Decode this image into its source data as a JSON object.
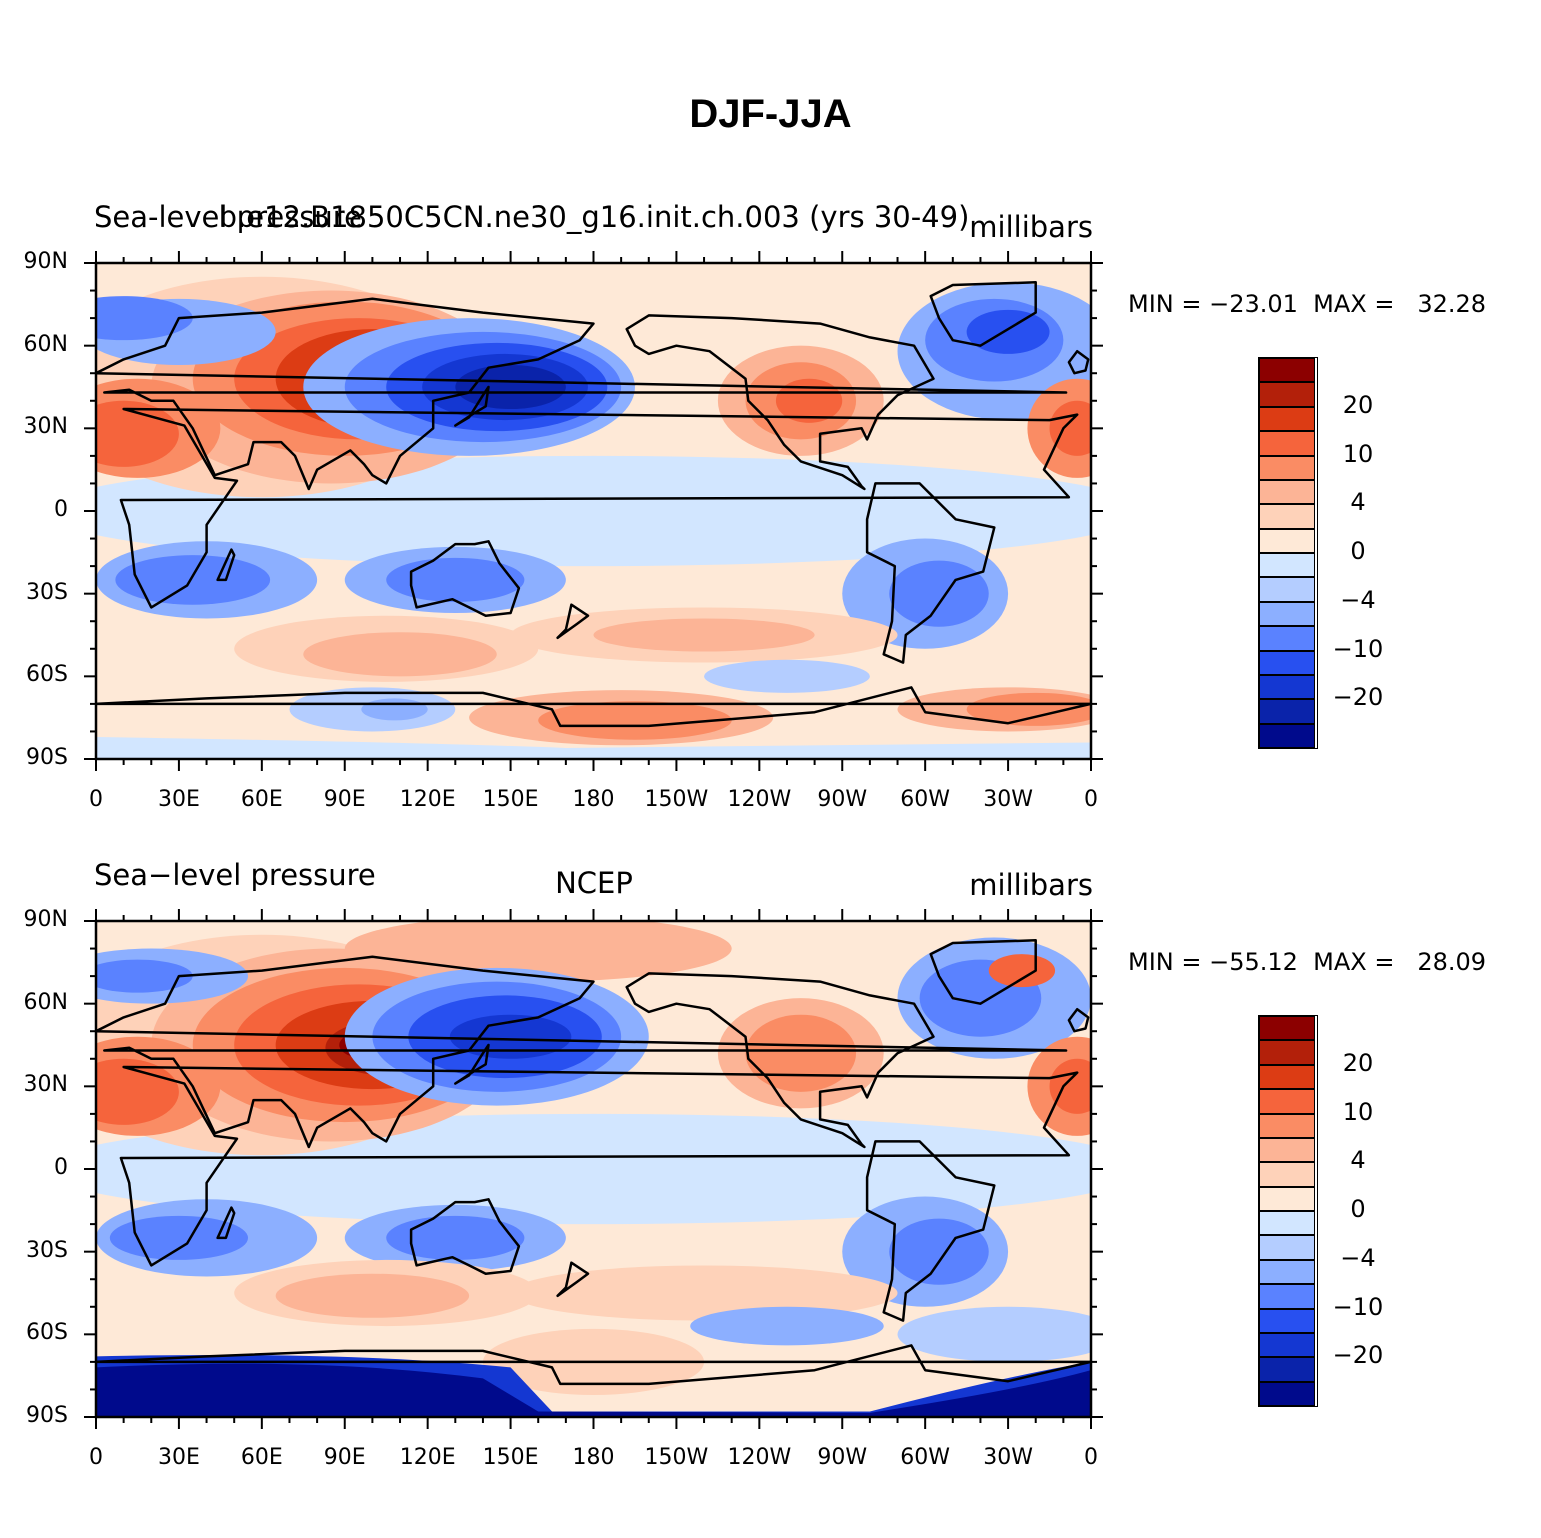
{
  "title": "DJF-JJA",
  "panels": [
    {
      "id": "model",
      "left_title": "Sea-level pressure",
      "center_title": "b.e12.B1850C5CN.ne30_g16.init.ch.003 (yrs 30-49)",
      "right_title": "millibars",
      "min_max": "MIN = −23.01  MAX =   32.28"
    },
    {
      "id": "ncep",
      "left_title": "Sea−level pressure",
      "center_title": "NCEP",
      "right_title": "millibars",
      "min_max": "MIN = −55.12  MAX =   28.09"
    }
  ],
  "axes": {
    "lat_ticks": [
      "90N",
      "60N",
      "30N",
      "0",
      "30S",
      "60S",
      "90S"
    ],
    "lon_ticks": [
      "0",
      "30E",
      "60E",
      "90E",
      "120E",
      "150E",
      "180",
      "150W",
      "120W",
      "90W",
      "60W",
      "30W",
      "0"
    ]
  },
  "legend": {
    "colors": [
      "#8c0000",
      "#b3200a",
      "#dc3c14",
      "#f5643c",
      "#fa8c64",
      "#fcb496",
      "#fed2b9",
      "#fee9d7",
      "#d2e6ff",
      "#b4cdff",
      "#8cafff",
      "#5a82ff",
      "#2850f0",
      "#1437d2",
      "#0a23aa",
      "#000a8c"
    ],
    "labels": [
      "20",
      "10",
      "4",
      "0",
      "−4",
      "−10",
      "−20"
    ]
  },
  "palette": {
    "land_outline": "#000000"
  }
}
